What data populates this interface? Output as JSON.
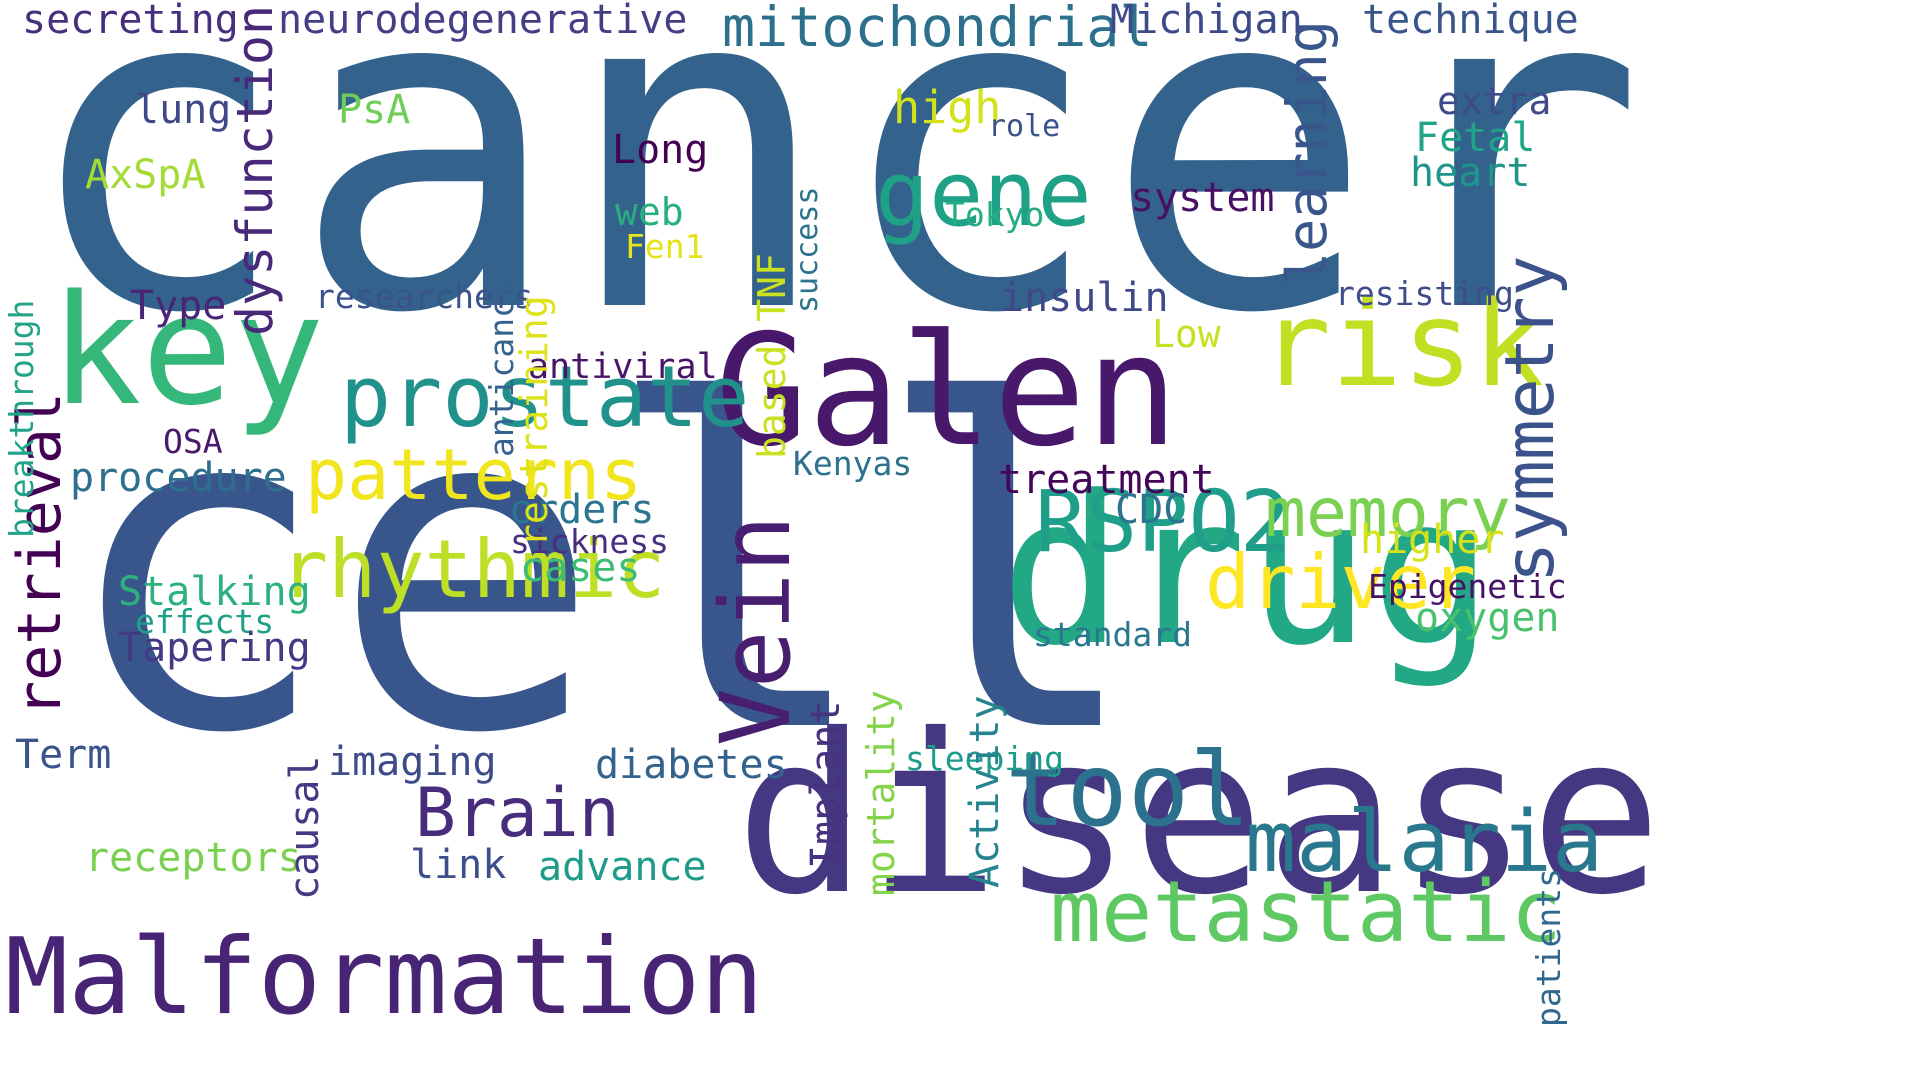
{
  "words": [
    {
      "id": "cancer",
      "text": "cancer",
      "color": "#33638d",
      "vertical": false
    },
    {
      "id": "cell",
      "text": "cell",
      "color": "#39568c",
      "vertical": false
    },
    {
      "id": "disease",
      "text": "disease",
      "color": "#453781",
      "vertical": false
    },
    {
      "id": "galen",
      "text": "Galen",
      "color": "#48186a",
      "vertical": false
    },
    {
      "id": "drug",
      "text": "drug",
      "color": "#22a884",
      "vertical": false
    },
    {
      "id": "key",
      "text": "key",
      "color": "#35b779",
      "vertical": false
    },
    {
      "id": "malformation",
      "text": "Malformation",
      "color": "#482475",
      "vertical": false
    },
    {
      "id": "risk",
      "text": "risk",
      "color": "#c2df23",
      "vertical": false
    },
    {
      "id": "vein",
      "text": "Vein",
      "color": "#481f70",
      "vertical": true
    },
    {
      "id": "tool",
      "text": "tool",
      "color": "#2c728e",
      "vertical": false
    },
    {
      "id": "prostate",
      "text": "prostate",
      "color": "#21918c",
      "vertical": false
    },
    {
      "id": "gene",
      "text": "gene",
      "color": "#1fa187",
      "vertical": false
    },
    {
      "id": "rspo2",
      "text": "RSPO2",
      "color": "#1f9e89",
      "vertical": false
    },
    {
      "id": "metastatic",
      "text": "metastatic",
      "color": "#5ec962",
      "vertical": false
    },
    {
      "id": "malaria",
      "text": "malaria",
      "color": "#2a788e",
      "vertical": false
    },
    {
      "id": "rhythmic",
      "text": "rhythmic",
      "color": "#bddf26",
      "vertical": false
    },
    {
      "id": "driver",
      "text": "driver",
      "color": "#fde725",
      "vertical": false
    },
    {
      "id": "patterns",
      "text": "patterns",
      "color": "#f1e51d",
      "vertical": false
    },
    {
      "id": "symmetry",
      "text": "symmetry",
      "color": "#3b528b",
      "vertical": true
    },
    {
      "id": "brain",
      "text": "Brain",
      "color": "#472d7b",
      "vertical": false
    },
    {
      "id": "memory",
      "text": "memory",
      "color": "#7ad151",
      "vertical": false
    },
    {
      "id": "retrieval",
      "text": "retrieval",
      "color": "#440154",
      "vertical": true
    },
    {
      "id": "mitochondrial",
      "text": "mitochondrial",
      "color": "#2d708e",
      "vertical": false
    },
    {
      "id": "learning",
      "text": "learning",
      "color": "#39568c",
      "vertical": true
    },
    {
      "id": "dysfunction",
      "text": "dysfunction",
      "color": "#482878",
      "vertical": true
    },
    {
      "id": "neurodegenerative",
      "text": "neurodegenerative",
      "color": "#433e85",
      "vertical": false
    },
    {
      "id": "secreting",
      "text": "secreting",
      "color": "#46307e",
      "vertical": false
    },
    {
      "id": "michigan",
      "text": "Michigan",
      "color": "#3e4989",
      "vertical": false
    },
    {
      "id": "technique",
      "text": "technique",
      "color": "#39558c",
      "vertical": false
    },
    {
      "id": "lung",
      "text": "lung",
      "color": "#3f4788",
      "vertical": false
    },
    {
      "id": "psa",
      "text": "PsA",
      "color": "#6ece58",
      "vertical": false
    },
    {
      "id": "axspa",
      "text": "AxSpA",
      "color": "#a5db36",
      "vertical": false
    },
    {
      "id": "long",
      "text": "Long",
      "color": "#440154",
      "vertical": false
    },
    {
      "id": "web",
      "text": "web",
      "color": "#29af7f",
      "vertical": false
    },
    {
      "id": "fen1",
      "text": "Fen1",
      "color": "#e5e419",
      "vertical": false
    },
    {
      "id": "high",
      "text": "high",
      "color": "#d2e21b",
      "vertical": false
    },
    {
      "id": "role",
      "text": "role",
      "color": "#3b518b",
      "vertical": false
    },
    {
      "id": "extra",
      "text": "extra",
      "color": "#3e4a89",
      "vertical": false
    },
    {
      "id": "fetal",
      "text": "Fetal",
      "color": "#20a486",
      "vertical": false
    },
    {
      "id": "heart",
      "text": "heart",
      "color": "#1f958b",
      "vertical": false
    },
    {
      "id": "system",
      "text": "system",
      "color": "#471063",
      "vertical": false
    },
    {
      "id": "tokyo",
      "text": "Tokyo",
      "color": "#26ad81",
      "vertical": false
    },
    {
      "id": "insulin",
      "text": "insulin",
      "color": "#3f4889",
      "vertical": false
    },
    {
      "id": "resisting",
      "text": "resisting",
      "color": "#3e4c8a",
      "vertical": false
    },
    {
      "id": "low",
      "text": "Low",
      "color": "#c8e020",
      "vertical": false
    },
    {
      "id": "researchers",
      "text": "researchers",
      "color": "#3b528b",
      "vertical": false
    },
    {
      "id": "type",
      "text": "Type",
      "color": "#482576",
      "vertical": false
    },
    {
      "id": "antiviral",
      "text": "antiviral",
      "color": "#481467",
      "vertical": false
    },
    {
      "id": "osa",
      "text": "OSA",
      "color": "#481b6d",
      "vertical": false
    },
    {
      "id": "procedure",
      "text": "procedure",
      "color": "#2e6e8e",
      "vertical": false
    },
    {
      "id": "kenyas",
      "text": "Kenyas",
      "color": "#2d718e",
      "vertical": false
    },
    {
      "id": "treatment",
      "text": "treatment",
      "color": "#450559",
      "vertical": false
    },
    {
      "id": "cdc",
      "text": "CDC",
      "color": "#2c738e",
      "vertical": false
    },
    {
      "id": "higher",
      "text": "higher",
      "color": "#d8e219",
      "vertical": false
    },
    {
      "id": "orders",
      "text": "orders",
      "color": "#2b758e",
      "vertical": false
    },
    {
      "id": "sickness",
      "text": "sickness",
      "color": "#472f7d",
      "vertical": false
    },
    {
      "id": "cases",
      "text": "cases",
      "color": "#3dbc74",
      "vertical": false
    },
    {
      "id": "stalking",
      "text": "Stalking",
      "color": "#2db27d",
      "vertical": false
    },
    {
      "id": "effects",
      "text": "effects",
      "color": "#1fa088",
      "vertical": false
    },
    {
      "id": "tapering",
      "text": "Tapering",
      "color": "#443983",
      "vertical": false
    },
    {
      "id": "epigenetic",
      "text": "Epigenetic",
      "color": "#471365",
      "vertical": false
    },
    {
      "id": "oxygen",
      "text": "oxygen",
      "color": "#4ac16d",
      "vertical": false
    },
    {
      "id": "standard",
      "text": "standard",
      "color": "#2a778e",
      "vertical": false
    },
    {
      "id": "term",
      "text": "Term",
      "color": "#3a538b",
      "vertical": false
    },
    {
      "id": "imaging",
      "text": "imaging",
      "color": "#3e4c8a",
      "vertical": false
    },
    {
      "id": "diabetes",
      "text": "diabetes",
      "color": "#33628d",
      "vertical": false
    },
    {
      "id": "sleeping",
      "text": "sleeping",
      "color": "#1e9b8a",
      "vertical": false
    },
    {
      "id": "receptors",
      "text": "receptors",
      "color": "#7ad151",
      "vertical": false
    },
    {
      "id": "link",
      "text": "link",
      "color": "#3d4e8a",
      "vertical": false
    },
    {
      "id": "advance",
      "text": "advance",
      "color": "#1e9c89",
      "vertical": false
    },
    {
      "id": "breakthrough",
      "text": "breakthrough",
      "color": "#20a386",
      "vertical": true
    },
    {
      "id": "restraining",
      "text": "restraining",
      "color": "#dde318",
      "vertical": true
    },
    {
      "id": "anticancer",
      "text": "anticancer",
      "color": "#34618d",
      "vertical": true
    },
    {
      "id": "based-tnf",
      "text": "based TNF",
      "color": "#cae11f",
      "vertical": true
    },
    {
      "id": "success",
      "text": "success",
      "color": "#2c738e",
      "vertical": true
    },
    {
      "id": "mortality",
      "text": "mortality",
      "color": "#84d44b",
      "vertical": true
    },
    {
      "id": "activity",
      "text": "Activity",
      "color": "#25848e",
      "vertical": true
    },
    {
      "id": "implant",
      "text": "Implant",
      "color": "#46327e",
      "vertical": true
    },
    {
      "id": "causal",
      "text": "causal",
      "color": "#443a83",
      "vertical": true
    },
    {
      "id": "patients",
      "text": "patients",
      "color": "#31688e",
      "vertical": true
    }
  ]
}
